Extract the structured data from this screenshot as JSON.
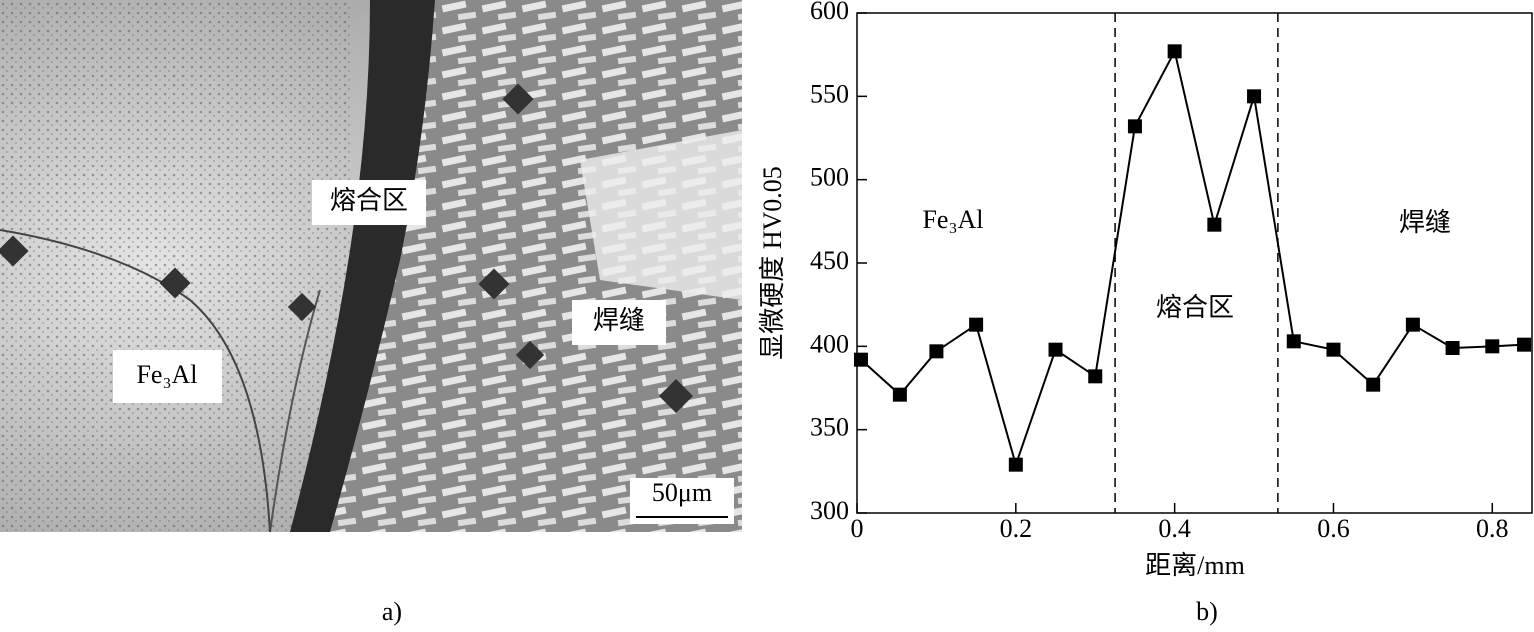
{
  "micrograph": {
    "labels": {
      "fusion_zone": "熔合区",
      "weld": "焊缝",
      "base": "Fe₃Al"
    },
    "scale_bar": "50μm",
    "caption": "a)"
  },
  "chart_data": {
    "type": "line",
    "caption": "b)",
    "xlabel": "距离/mm",
    "ylabel": "显微硬度 HV0.05",
    "x": [
      0.005,
      0.054,
      0.1,
      0.15,
      0.2,
      0.25,
      0.3,
      0.35,
      0.4,
      0.45,
      0.5,
      0.55,
      0.6,
      0.65,
      0.7,
      0.75,
      0.8,
      0.84
    ],
    "series": [
      {
        "color": "#000000",
        "values": [
          392,
          371,
          397,
          413,
          329,
          398,
          382,
          532,
          577,
          473,
          550,
          403,
          398,
          377,
          413,
          399,
          400,
          401
        ]
      }
    ],
    "xlim": [
      0,
      0.85
    ],
    "xticks": [
      0,
      0.2,
      0.4,
      0.6,
      0.8
    ],
    "ylim": [
      300,
      600
    ],
    "yticks": [
      300,
      350,
      400,
      450,
      500,
      550,
      600
    ],
    "region_bounds": [
      0.325,
      0.53
    ],
    "annotations": [
      "Fe₃Al",
      "熔合区",
      "焊缝"
    ]
  }
}
